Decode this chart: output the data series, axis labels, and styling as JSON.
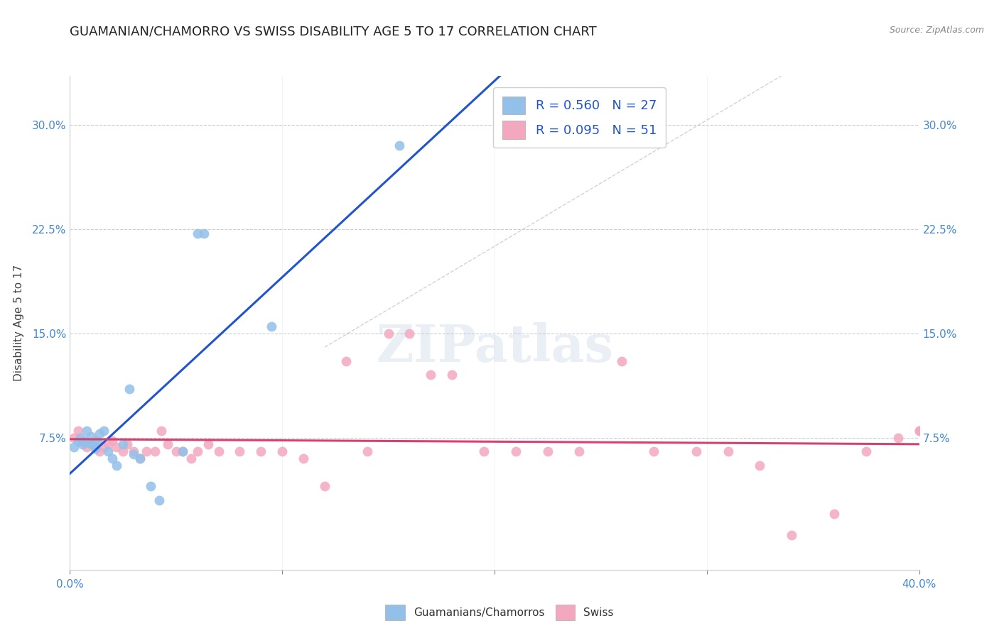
{
  "title": "GUAMANIAN/CHAMORRO VS SWISS DISABILITY AGE 5 TO 17 CORRELATION CHART",
  "source": "Source: ZipAtlas.com",
  "ylabel": "Disability Age 5 to 17",
  "ytick_labels": [
    "7.5%",
    "15.0%",
    "22.5%",
    "30.0%"
  ],
  "ytick_values": [
    0.075,
    0.15,
    0.225,
    0.3
  ],
  "xlim": [
    0.0,
    0.4
  ],
  "ylim": [
    -0.02,
    0.335
  ],
  "guamanian_x": [
    0.002,
    0.004,
    0.005,
    0.006,
    0.007,
    0.008,
    0.009,
    0.01,
    0.011,
    0.012,
    0.013,
    0.014,
    0.016,
    0.018,
    0.02,
    0.022,
    0.025,
    0.028,
    0.03,
    0.033,
    0.038,
    0.042,
    0.053,
    0.06,
    0.063,
    0.095,
    0.155
  ],
  "guamanian_y": [
    0.068,
    0.072,
    0.075,
    0.07,
    0.073,
    0.08,
    0.071,
    0.076,
    0.07,
    0.067,
    0.072,
    0.078,
    0.08,
    0.065,
    0.06,
    0.055,
    0.07,
    0.11,
    0.063,
    0.06,
    0.04,
    0.03,
    0.065,
    0.222,
    0.222,
    0.155,
    0.285
  ],
  "swiss_x": [
    0.002,
    0.004,
    0.006,
    0.008,
    0.01,
    0.012,
    0.014,
    0.016,
    0.018,
    0.02,
    0.022,
    0.025,
    0.027,
    0.03,
    0.033,
    0.036,
    0.04,
    0.043,
    0.046,
    0.05,
    0.053,
    0.057,
    0.06,
    0.065,
    0.07,
    0.08,
    0.09,
    0.1,
    0.11,
    0.12,
    0.13,
    0.14,
    0.15,
    0.16,
    0.17,
    0.18,
    0.195,
    0.21,
    0.225,
    0.24,
    0.26,
    0.275,
    0.295,
    0.31,
    0.325,
    0.34,
    0.36,
    0.375,
    0.39,
    0.4,
    0.4
  ],
  "swiss_y": [
    0.075,
    0.08,
    0.072,
    0.068,
    0.07,
    0.073,
    0.065,
    0.068,
    0.07,
    0.073,
    0.068,
    0.065,
    0.07,
    0.065,
    0.06,
    0.065,
    0.065,
    0.08,
    0.07,
    0.065,
    0.065,
    0.06,
    0.065,
    0.07,
    0.065,
    0.065,
    0.065,
    0.065,
    0.06,
    0.04,
    0.13,
    0.065,
    0.15,
    0.15,
    0.12,
    0.12,
    0.065,
    0.065,
    0.065,
    0.065,
    0.13,
    0.065,
    0.065,
    0.065,
    0.055,
    0.005,
    0.02,
    0.065,
    0.075,
    0.08,
    0.08
  ],
  "guamanian_color": "#92c0e8",
  "swiss_color": "#f4a8c0",
  "blue_line_color": "#2255cc",
  "pink_line_color": "#d94070",
  "diagonal_color": "#b0bcd0",
  "background_color": "#ffffff",
  "grid_color": "#c8ccd8",
  "title_fontsize": 13,
  "axis_label_fontsize": 11,
  "tick_fontsize": 11,
  "legend_fontsize": 13,
  "marker_size": 100
}
